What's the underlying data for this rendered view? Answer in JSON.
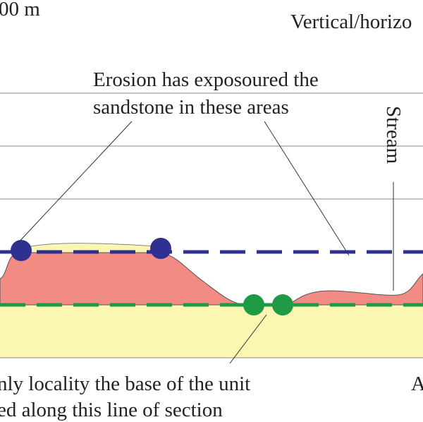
{
  "scale_label": "00 m",
  "exaggeration_label": "Vertical/horizo",
  "annotations": {
    "erosion": [
      "Erosion has exposoured the",
      "sandstone in these areas"
    ],
    "stream": "Stream",
    "base": [
      "nly locality the base of the unit",
      "ed along this line of section"
    ],
    "right": "A"
  }
}
